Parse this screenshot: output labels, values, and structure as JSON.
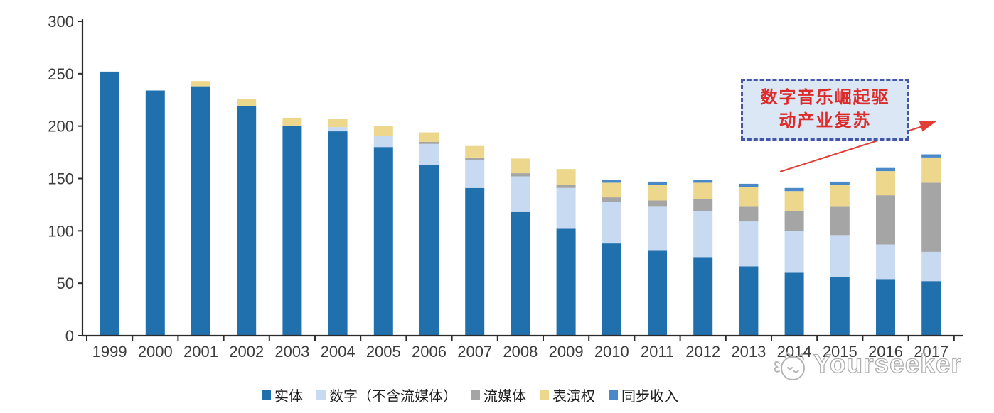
{
  "chart_data": {
    "type": "bar",
    "stacked": true,
    "title": "",
    "xlabel": "",
    "ylabel": "",
    "categories": [
      "1999",
      "2000",
      "2001",
      "2002",
      "2003",
      "2004",
      "2005",
      "2006",
      "2007",
      "2008",
      "2009",
      "2010",
      "2011",
      "2012",
      "2013",
      "2014",
      "2015",
      "2016",
      "2017"
    ],
    "series": [
      {
        "key": "physical",
        "name": "实体",
        "color": "#2070ae",
        "values": [
          252,
          234,
          238,
          219,
          200,
          195,
          180,
          163,
          141,
          118,
          102,
          88,
          81,
          75,
          66,
          60,
          56,
          54,
          52
        ]
      },
      {
        "key": "digital-excl-streaming",
        "name": "数字（不含流媒体）",
        "color": "#c7daf1",
        "values": [
          0,
          0,
          0,
          0,
          0,
          4,
          11,
          20,
          27,
          34,
          39,
          40,
          42,
          44,
          43,
          40,
          40,
          33,
          28
        ]
      },
      {
        "key": "streaming",
        "name": "流媒体",
        "color": "#a5a5a5",
        "values": [
          0,
          0,
          0,
          0,
          0,
          0,
          0,
          2,
          2,
          3,
          3,
          4,
          6,
          11,
          14,
          19,
          27,
          47,
          66
        ]
      },
      {
        "key": "performance-rights",
        "name": "表演权",
        "color": "#ecd78c",
        "values": [
          0,
          0,
          5,
          7,
          8,
          8,
          9,
          9,
          11,
          14,
          15,
          14,
          15,
          16,
          19,
          19,
          21,
          23,
          24
        ]
      },
      {
        "key": "sync-revenue",
        "name": "同步收入",
        "color": "#4a88c8",
        "values": [
          0,
          0,
          0,
          0,
          0,
          0,
          0,
          0,
          0,
          0,
          0,
          3,
          3,
          3,
          3,
          3,
          3,
          3,
          3
        ]
      }
    ],
    "totals": [
      252,
      234,
      243,
      226,
      208,
      207,
      200,
      194,
      181,
      169,
      159,
      149,
      147,
      149,
      145,
      141,
      147,
      160,
      173
    ],
    "ylim": [
      0,
      300
    ],
    "yticks": [
      0,
      50,
      100,
      150,
      200,
      250,
      300
    ],
    "grid": false,
    "legend_position": "bottom-center",
    "axis_color": "#2b2b2b",
    "tick_label_color": "#3c3c3c"
  },
  "annotation": {
    "line1": "数字音乐崛起驱",
    "line2": "动产业复苏",
    "text_color": "#dc2b2b",
    "border_color": "#4456a8",
    "fill_color": "#dbe7f5",
    "arrow_color": "#e03d36"
  },
  "watermark": {
    "text": "Yourseeker",
    "logo_icon": "yourseeker-cat-logo-icon",
    "color": "#aeaeae"
  }
}
